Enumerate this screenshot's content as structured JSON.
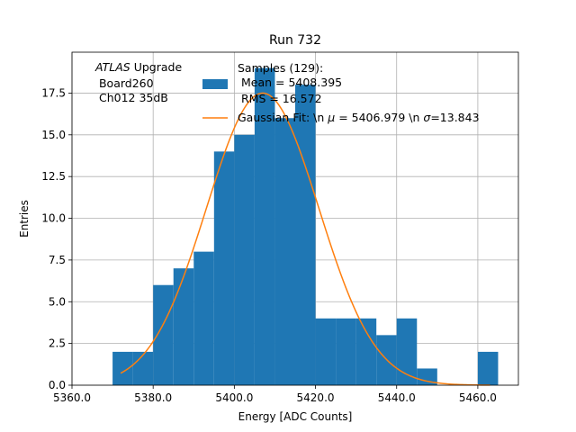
{
  "chart_data": {
    "type": "bar",
    "title": "Run 732",
    "xlabel": "Energy [ADC Counts]",
    "ylabel": "Entries",
    "xlim": [
      5360,
      5470
    ],
    "ylim": [
      0,
      19.95
    ],
    "grid": true,
    "x_ticks": [
      5360,
      5380,
      5400,
      5420,
      5440,
      5460
    ],
    "x_tick_labels": [
      "5360.0",
      "5380.0",
      "5400.0",
      "5420.0",
      "5440.0",
      "5460.0"
    ],
    "y_ticks": [
      0,
      2.5,
      5,
      7.5,
      10,
      12.5,
      15,
      17.5
    ],
    "y_tick_labels": [
      "0.0",
      "2.5",
      "5.0",
      "7.5",
      "10.0",
      "12.5",
      "15.0",
      "17.5"
    ],
    "bin_edges": [
      5370,
      5375,
      5380,
      5385,
      5390,
      5395,
      5400,
      5405,
      5410,
      5415,
      5420,
      5425,
      5430,
      5435,
      5440,
      5445,
      5450,
      5455,
      5460,
      5465
    ],
    "counts": [
      2,
      2,
      6,
      7,
      8,
      14,
      15,
      19,
      16,
      18,
      4,
      4,
      4,
      3,
      4,
      1,
      0,
      0,
      2
    ],
    "fit": {
      "type": "gaussian",
      "mu": 5406.979,
      "sigma": 13.843,
      "amplitude": 17.5,
      "x_range": [
        5372,
        5463
      ]
    },
    "annotation": {
      "italic": "ATLAS",
      "line1_rest": " Upgrade",
      "line2": " Board260",
      "line3": " Ch012 35dB"
    },
    "legend": {
      "position": "top-center",
      "series_label_lines": [
        "Samples (129):",
        " Mean = 5408.395",
        " RMS = 16.572"
      ],
      "fit_label_prefix": "Gaussian Fit: \\n ",
      "fit_label_mu_sym": "μ",
      "fit_label_mid": " = 5406.979 \\n ",
      "fit_label_sigma_sym": "σ",
      "fit_label_end": "=13.843"
    },
    "colors": {
      "bars": "#1f77b4",
      "fit_line": "#ff7f0e",
      "grid": "#b0b0b0"
    }
  }
}
